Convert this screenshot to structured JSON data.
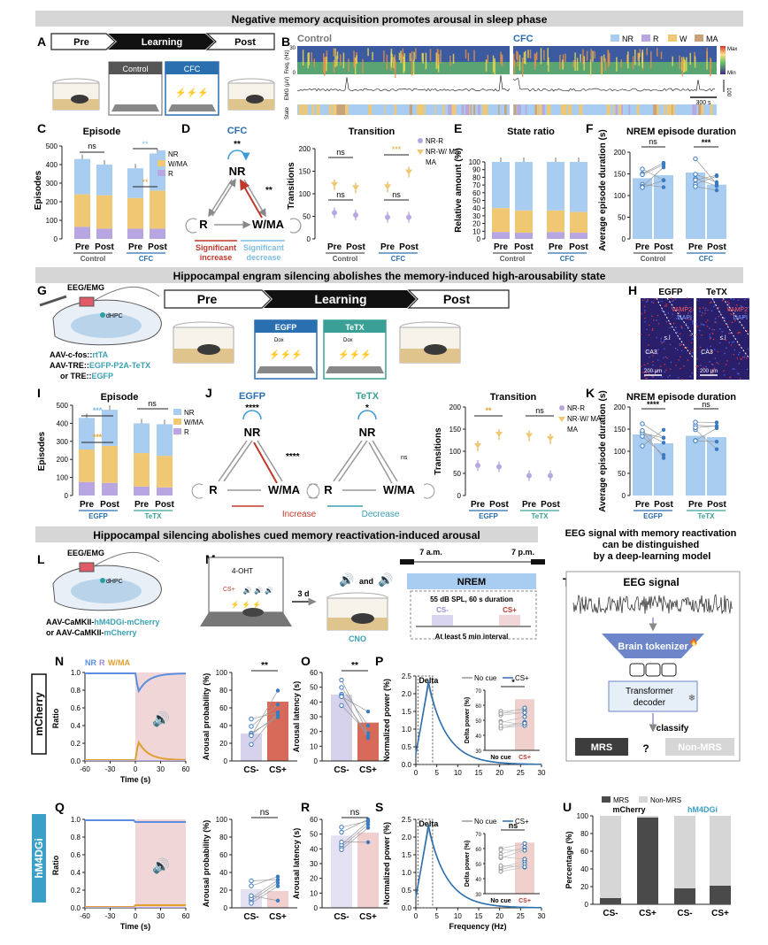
{
  "section_titles": {
    "s1": "Negative memory acquisition promotes arousal in sleep phase",
    "s2": "Hippocampal engram silencing abolishes the memory-induced high-arousability state",
    "s3": "Hippocampal silencing abolishes cued memory reactivation-induced arousal",
    "s4": "EEG signal with memory reactivation can be distinguished by a deep-learning model"
  },
  "panel_letters": [
    "A",
    "B",
    "C",
    "D",
    "E",
    "F",
    "G",
    "H",
    "I",
    "J",
    "K",
    "L",
    "M",
    "N",
    "O",
    "P",
    "Q",
    "R",
    "S",
    "T",
    "U"
  ],
  "colors": {
    "nr": "#a9cdf0",
    "r": "#b8a6e3",
    "wma": "#f0c772",
    "ma": "#c9a27a",
    "pink": "#f0d6d6",
    "red": "#c0392b",
    "blue": "#2a6fb0",
    "teal": "#3aa0b4",
    "grey": "#d9d9d9",
    "dark": "#555555"
  },
  "panel_a": {
    "timeline": [
      "Pre",
      "Learning",
      "Post"
    ],
    "boxes": [
      "Control",
      "CFC"
    ]
  },
  "panel_b": {
    "control": "Control",
    "cfc": "CFC",
    "legend": [
      "NR",
      "R",
      "W",
      "MA"
    ],
    "ylabels": [
      "Freq. (Hz)",
      "EMG (μV)",
      "State"
    ],
    "ymax": "30",
    "ymin": "0",
    "scale": "300 s",
    "cbar_max": "Max",
    "cbar_min": "Min",
    "emg_scale": "100"
  },
  "panel_c": {
    "title": "Episode",
    "ylabel": "Episodes",
    "yticks": [
      "0",
      "100",
      "200",
      "300",
      "400",
      "500"
    ],
    "legend": [
      "NR",
      "W/MA",
      "R"
    ],
    "x": [
      "Pre",
      "Post",
      "Pre",
      "Post"
    ],
    "groups": [
      "Control",
      "CFC"
    ],
    "sig": [
      "ns",
      "**",
      "**"
    ]
  },
  "panel_d": {
    "title": "CFC",
    "nodes": [
      "NR",
      "R",
      "W/MA"
    ],
    "sig": [
      "**",
      "**"
    ],
    "legend": [
      "Significant increase",
      "Significant decrease"
    ]
  },
  "panel_d2": {
    "title": "Transition",
    "ylabel": "Transitions",
    "yticks": [
      "0",
      "50",
      "100",
      "150",
      "200"
    ],
    "legend": [
      "NR-R",
      "NR-W/ MA"
    ],
    "x": [
      "Pre",
      "Post",
      "Pre",
      "Post"
    ],
    "groups": [
      "Control",
      "CFC"
    ],
    "sig": [
      "ns",
      "ns",
      "***",
      "ns"
    ]
  },
  "panel_e": {
    "title": "State ratio",
    "ylabel": "Relative amount (%)",
    "yticks": [
      "0",
      "10",
      "20",
      "30",
      "40",
      "50",
      "60",
      "70",
      "80",
      "90",
      "100"
    ],
    "x": [
      "Pre",
      "Post",
      "Pre",
      "Post"
    ],
    "groups": [
      "Control",
      "CFC"
    ]
  },
  "panel_f": {
    "title": "NREM episode duration",
    "ylabel": "Average episode duration (s)",
    "yticks": [
      "0",
      "50",
      "100",
      "150",
      "200"
    ],
    "x": [
      "Pre",
      "Post",
      "Pre",
      "Post"
    ],
    "groups": [
      "Control",
      "CFC"
    ],
    "sig": [
      "ns",
      "***"
    ]
  },
  "panel_g": {
    "labels": [
      "EEG/EMG",
      "dHPC"
    ],
    "virus1": "AAV-c-fos::",
    "virus1b": "rtTA",
    "virus2": "AAV-TRE::",
    "virus2b": "EGFP-P2A-TeTX",
    "virus3": "or TRE::",
    "virus3b": "EGFP",
    "timeline": [
      "Pre",
      "Learning",
      "Post"
    ],
    "boxes": [
      "EGFP",
      "TeTX"
    ],
    "dox": "Dox"
  },
  "panel_h": {
    "titles": [
      "EGFP",
      "TeTX"
    ],
    "stain": [
      "VAMP2",
      "DAPI"
    ],
    "regions": [
      "CA3",
      "s.l"
    ],
    "scale": "200 μm"
  },
  "panel_i": {
    "title": "Episode",
    "ylabel": "Episodes",
    "yticks": [
      "0",
      "100",
      "200",
      "300",
      "400",
      "500"
    ],
    "legend": [
      "NR",
      "W/MA",
      "R"
    ],
    "x": [
      "Pre",
      "Post",
      "Pre",
      "Post"
    ],
    "groups": [
      "EGFP",
      "TeTX"
    ],
    "sig": [
      "***",
      "***",
      "ns"
    ]
  },
  "panel_j": {
    "titles": [
      "EGFP",
      "TeTX"
    ],
    "nodes": [
      "NR",
      "R",
      "W/MA"
    ],
    "sig_egfp": [
      "****",
      "****"
    ],
    "sig_tetx": [
      "*",
      "ns"
    ],
    "legend": [
      "Increase",
      "Decrease"
    ]
  },
  "panel_j2": {
    "title": "Transition",
    "ylabel": "Transitions",
    "yticks": [
      "0",
      "50",
      "100",
      "150",
      "200"
    ],
    "legend": [
      "NR-R",
      "NR-W/ MA"
    ],
    "x": [
      "Pre",
      "Post",
      "Pre",
      "Post"
    ],
    "groups": [
      "EGFP",
      "TeTX"
    ],
    "sig": [
      "**",
      "ns"
    ]
  },
  "panel_k": {
    "title": "NREM episode duration",
    "ylabel": "Average episode duration (s)",
    "yticks": [
      "0",
      "50",
      "100",
      "150",
      "200"
    ],
    "x": [
      "Pre",
      "Post",
      "Pre",
      "Post"
    ],
    "groups": [
      "EGFP",
      "TeTX"
    ],
    "sig": [
      "****",
      "ns"
    ]
  },
  "panel_l": {
    "labels": [
      "EEG/EMG",
      "dHPC"
    ],
    "virus1a": "AAV-CaMKII-",
    "virus1b": "hM4DGi-mCherry",
    "virus2a": "or AAV-CaMKII-",
    "virus2b": "mCherry"
  },
  "panel_m": {
    "drug": "4-OHT",
    "cs": "CS+",
    "delay": "3 d",
    "and": "and",
    "cno": "CNO",
    "t_start": "7 a.m.",
    "t_end": "7 p.m.",
    "nrem": "NREM",
    "stim": "55 dB SPL, 60 s duration",
    "cs_minus": "CS-",
    "cs_plus": "CS+",
    "interval": "At least 5 min interval"
  },
  "panel_n": {
    "group": "mCherry",
    "legend": [
      "NR",
      "R",
      "W/MA"
    ],
    "ylabel": "Ratio",
    "yticks": [
      "0.0",
      "0.2",
      "0.4",
      "0.6",
      "0.8",
      "1.0"
    ],
    "xticks": [
      "-60",
      "-30",
      "0",
      "30",
      "60"
    ],
    "xlabel": "Time (s)"
  },
  "panel_n2": {
    "ylabel": "Arousal probability (%)",
    "yticks": [
      "0",
      "20",
      "40",
      "60",
      "80",
      "100"
    ],
    "x": [
      "CS-",
      "CS+"
    ],
    "sig": "**"
  },
  "panel_o": {
    "ylabel": "Arousal latency (s)",
    "yticks": [
      "0",
      "10",
      "20",
      "30",
      "40",
      "50",
      "60"
    ],
    "x": [
      "CS-",
      "CS+"
    ],
    "sig": "**"
  },
  "panel_p": {
    "ylabel": "Normalized power (%)",
    "yticks": [
      "0.0",
      "0.5",
      "1.0",
      "1.5",
      "2.0",
      "2.5"
    ],
    "xticks": [
      "0",
      "5",
      "10",
      "15",
      "20",
      "25",
      "30"
    ],
    "legend": [
      "No cue",
      "CS+"
    ],
    "band": "Delta",
    "inset_ylabel": "Delta power (%)",
    "inset_yticks": [
      "30",
      "40",
      "50",
      "60",
      "70"
    ],
    "inset_x": [
      "No cue",
      "CS+"
    ],
    "sig": "*"
  },
  "panel_q": {
    "group": "hM4DGi",
    "ylabel": "Ratio",
    "yticks": [
      "0.0",
      "0.2",
      "0.4",
      "0.6",
      "0.8",
      "1.0"
    ],
    "xticks": [
      "-60",
      "-30",
      "0",
      "30",
      "60"
    ],
    "xlabel": "Time (s)"
  },
  "panel_q2": {
    "ylabel": "Arousal probability (%)",
    "yticks": [
      "0",
      "20",
      "40",
      "60",
      "80",
      "100"
    ],
    "x": [
      "CS-",
      "CS+"
    ],
    "sig": "ns"
  },
  "panel_r": {
    "ylabel": "Arousal latency (s)",
    "yticks": [
      "0",
      "10",
      "20",
      "30",
      "40",
      "50",
      "60"
    ],
    "x": [
      "CS-",
      "CS+"
    ],
    "sig": "ns"
  },
  "panel_s": {
    "ylabel": "Normalized power (%)",
    "yticks": [
      "0.0",
      "0.5",
      "1.0",
      "1.5",
      "2.0",
      "2.5"
    ],
    "xticks": [
      "0",
      "5",
      "10",
      "15",
      "20",
      "25",
      "30"
    ],
    "xlabel": "Frequency (Hz)",
    "legend": [
      "No cue",
      "CS+"
    ],
    "band": "Delta",
    "inset_ylabel": "Delta power (%)",
    "inset_yticks": [
      "30",
      "40",
      "50",
      "60",
      "70"
    ],
    "inset_x": [
      "No cue",
      "CS+"
    ],
    "sig": "ns"
  },
  "panel_t": {
    "signal": "EEG signal",
    "tokenizer": "Brain tokenizer",
    "decoder": "Transformer decoder",
    "classify": "classify",
    "out1": "MRS",
    "q": "?",
    "out2": "Non-MRS"
  },
  "panel_u": {
    "legend": [
      "MRS",
      "Non-MRS"
    ],
    "groups": [
      "mCherry",
      "hM4DGi"
    ],
    "ylabel": "Percentage (%)",
    "yticks": [
      "0",
      "20",
      "40",
      "60",
      "80",
      "100"
    ],
    "x": [
      "CS-",
      "CS+",
      "CS-",
      "CS+"
    ]
  },
  "chart_data": [
    {
      "id": "C",
      "type": "bar",
      "title": "Episode",
      "ylabel": "Episodes",
      "ylim": [
        0,
        500
      ],
      "categories": [
        "Control Pre",
        "Control Post",
        "CFC Pre",
        "CFC Post"
      ],
      "series": [
        {
          "name": "R",
          "values": [
            65,
            55,
            55,
            55
          ]
        },
        {
          "name": "W/MA",
          "values": [
            175,
            180,
            165,
            205
          ]
        },
        {
          "name": "NR",
          "values": [
            190,
            165,
            160,
            200
          ]
        }
      ]
    },
    {
      "id": "D2",
      "type": "scatter",
      "title": "Transition",
      "ylabel": "Transitions",
      "ylim": [
        0,
        200
      ],
      "categories": [
        "Control Pre",
        "Control Post",
        "CFC Pre",
        "CFC Post"
      ],
      "series": [
        {
          "name": "NR-R",
          "values": [
            58,
            53,
            48,
            48
          ]
        },
        {
          "name": "NR-W/ MA",
          "values": [
            120,
            113,
            115,
            148
          ]
        }
      ]
    },
    {
      "id": "E",
      "type": "bar",
      "title": "State ratio",
      "ylabel": "Relative amount (%)",
      "ylim": [
        0,
        100
      ],
      "categories": [
        "Control Pre",
        "Control Post",
        "CFC Pre",
        "CFC Post"
      ],
      "series": [
        {
          "name": "R",
          "values": [
            9,
            8,
            9,
            8
          ]
        },
        {
          "name": "W/MA",
          "values": [
            31,
            29,
            28,
            27
          ]
        },
        {
          "name": "NR",
          "values": [
            60,
            63,
            63,
            65
          ]
        }
      ]
    },
    {
      "id": "F",
      "type": "bar",
      "title": "NREM episode duration",
      "ylabel": "Average episode duration (s)",
      "ylim": [
        0,
        200
      ],
      "categories": [
        "Control Pre",
        "Control Post",
        "CFC Pre",
        "CFC Post"
      ],
      "values": [
        140,
        147,
        153,
        125
      ]
    },
    {
      "id": "I",
      "type": "bar",
      "title": "Episode",
      "ylabel": "Episodes",
      "ylim": [
        0,
        500
      ],
      "categories": [
        "EGFP Pre",
        "EGFP Post",
        "TeTX Pre",
        "TeTX Post"
      ],
      "series": [
        {
          "name": "R",
          "values": [
            75,
            70,
            50,
            45
          ]
        },
        {
          "name": "W/MA",
          "values": [
            180,
            205,
            185,
            175
          ]
        },
        {
          "name": "NR",
          "values": [
            175,
            200,
            165,
            175
          ]
        }
      ]
    },
    {
      "id": "J2",
      "type": "scatter",
      "title": "Transition",
      "ylabel": "Transitions",
      "ylim": [
        0,
        200
      ],
      "categories": [
        "EGFP Pre",
        "EGFP Post",
        "TeTX Pre",
        "TeTX Post"
      ],
      "series": [
        {
          "name": "NR-R",
          "values": [
            68,
            65,
            45,
            45
          ]
        },
        {
          "name": "NR-W/ MA",
          "values": [
            112,
            138,
            135,
            128
          ]
        }
      ]
    },
    {
      "id": "K",
      "type": "bar",
      "title": "NREM episode duration",
      "ylabel": "Average episode duration (s)",
      "ylim": [
        0,
        200
      ],
      "categories": [
        "EGFP Pre",
        "EGFP Post",
        "TeTX Pre",
        "TeTX Post"
      ],
      "values": [
        138,
        118,
        135,
        132
      ]
    },
    {
      "id": "N2",
      "type": "bar",
      "ylabel": "Arousal probability (%)",
      "ylim": [
        0,
        100
      ],
      "categories": [
        "CS-",
        "CS+"
      ],
      "values": [
        31,
        67
      ]
    },
    {
      "id": "O",
      "type": "bar",
      "ylabel": "Arousal latency (s)",
      "ylim": [
        0,
        60
      ],
      "categories": [
        "CS-",
        "CS+"
      ],
      "values": [
        45,
        26
      ]
    },
    {
      "id": "Q2",
      "type": "bar",
      "ylabel": "Arousal probability (%)",
      "ylim": [
        0,
        100
      ],
      "categories": [
        "CS-",
        "CS+"
      ],
      "values": [
        21,
        19
      ]
    },
    {
      "id": "R",
      "type": "bar",
      "ylabel": "Arousal latency (s)",
      "ylim": [
        0,
        60
      ],
      "categories": [
        "CS-",
        "CS+"
      ],
      "values": [
        49,
        51
      ]
    },
    {
      "id": "U",
      "type": "bar",
      "ylabel": "Percentage (%)",
      "ylim": [
        0,
        100
      ],
      "categories": [
        "mCherry CS-",
        "mCherry CS+",
        "hM4DGi CS-",
        "hM4DGi CS+"
      ],
      "series": [
        {
          "name": "MRS",
          "values": [
            7,
            98,
            18,
            21
          ]
        },
        {
          "name": "Non-MRS",
          "values": [
            93,
            2,
            82,
            79
          ]
        }
      ]
    }
  ]
}
